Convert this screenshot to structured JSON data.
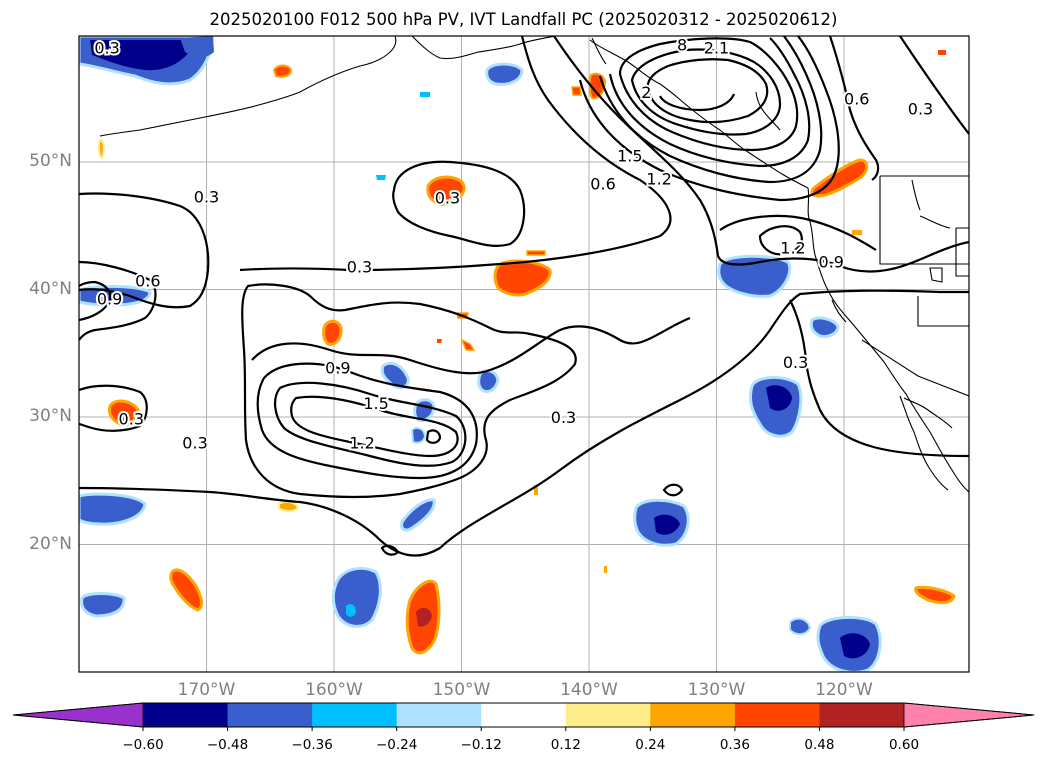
{
  "title": "2025020100 F012 500 hPa PV, IVT Landfall PC (2025020312 - 2025020612)",
  "map": {
    "lat_labels": [
      {
        "label": "50°N",
        "lat": 50
      },
      {
        "label": "40°N",
        "lat": 40
      },
      {
        "label": "30°N",
        "lat": 30
      },
      {
        "label": "20°N",
        "lat": 20
      }
    ],
    "lon_labels": [
      {
        "label": "170°W",
        "lon": -170
      },
      {
        "label": "160°W",
        "lon": -160
      },
      {
        "label": "150°W",
        "lon": -150
      },
      {
        "label": "140°W",
        "lon": -140
      },
      {
        "label": "130°W",
        "lon": -130
      },
      {
        "label": "120°W",
        "lon": -120
      }
    ],
    "contour_labels": [
      {
        "text": "0.3",
        "lat": 59.0,
        "lon": -177.8
      },
      {
        "text": "8",
        "lat": 59.2,
        "lon": -132.7
      },
      {
        "text": "2.1",
        "lat": 59.0,
        "lon": -130.0
      },
      {
        "text": "2",
        "lat": 55.5,
        "lon": -135.5
      },
      {
        "text": "0.6",
        "lat": 55.0,
        "lon": -119.0
      },
      {
        "text": "0.3",
        "lat": 54.2,
        "lon": -114.0
      },
      {
        "text": "1.5",
        "lat": 50.5,
        "lon": -136.8
      },
      {
        "text": "1.2",
        "lat": 48.7,
        "lon": -134.5
      },
      {
        "text": "0.6",
        "lat": 48.3,
        "lon": -138.9
      },
      {
        "text": "0.3",
        "lat": 47.3,
        "lon": -170.0
      },
      {
        "text": "0.3",
        "lat": 47.2,
        "lon": -151.1
      },
      {
        "text": "1.2",
        "lat": 43.3,
        "lon": -124.0
      },
      {
        "text": "0.9",
        "lat": 42.2,
        "lon": -121.0
      },
      {
        "text": "0.3",
        "lat": 41.8,
        "lon": -158.0
      },
      {
        "text": "0.6",
        "lat": 40.7,
        "lon": -174.6
      },
      {
        "text": "0.9",
        "lat": 39.3,
        "lon": -177.6
      },
      {
        "text": "0.3",
        "lat": 34.3,
        "lon": -123.8
      },
      {
        "text": "0.9",
        "lat": 33.9,
        "lon": -159.7
      },
      {
        "text": "1.5",
        "lat": 31.1,
        "lon": -156.7
      },
      {
        "text": "0.3",
        "lat": 30.0,
        "lon": -142.0
      },
      {
        "text": "0.3",
        "lat": 29.9,
        "lon": -175.9
      },
      {
        "text": "1.2",
        "lat": 28.0,
        "lon": -157.8
      },
      {
        "text": "0.3",
        "lat": 28.0,
        "lon": -170.9
      }
    ]
  },
  "colorbar": {
    "ticks": [
      "−0.60",
      "−0.48",
      "−0.36",
      "−0.24",
      "−0.12",
      "0.12",
      "0.24",
      "0.36",
      "0.48",
      "0.60"
    ],
    "colors": [
      "#9932cc",
      "#00008b",
      "#3a5fcd",
      "#00bfff",
      "#b0e2ff",
      "#ffffff",
      "#ffec8b",
      "#ffa500",
      "#ff4500",
      "#b22222",
      "#ff82ab"
    ]
  },
  "colors": {
    "pos1": "#ffec8b",
    "pos2": "#ffa500",
    "pos3": "#ff4500",
    "pos4": "#b22222",
    "neg1": "#b0e2ff",
    "neg2": "#00bfff",
    "neg3": "#3a5fcd",
    "neg4": "#00008b",
    "grid": "#b0b0b0",
    "label": "#808080"
  }
}
